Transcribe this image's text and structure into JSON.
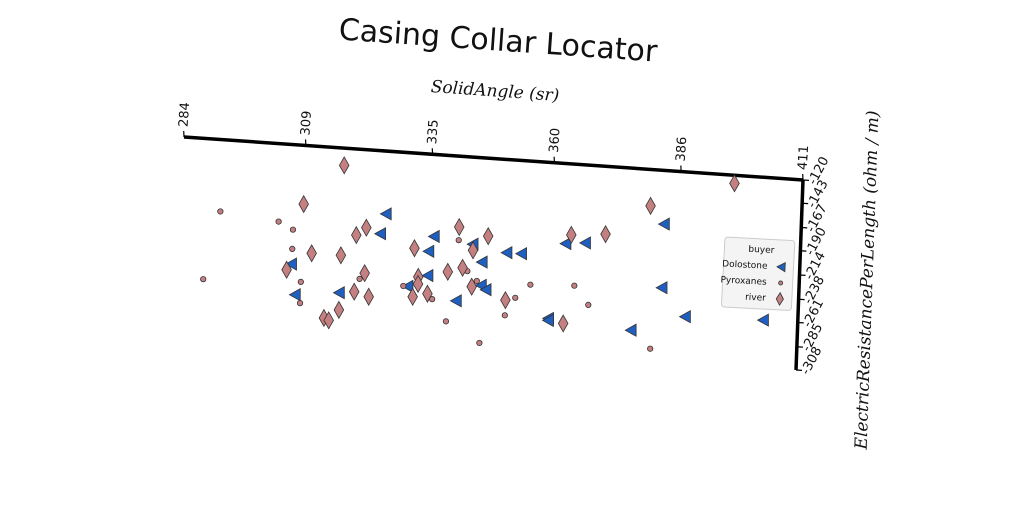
{
  "chart_data": {
    "type": "scatter",
    "title": "Casing Collar Locator",
    "x_label": "SolidAngle (sr)",
    "y_label": "ElectricResistancePerLength (ohm / m)",
    "xlim": [
      284,
      411
    ],
    "xticks": [
      284,
      309,
      335,
      360,
      386,
      411
    ],
    "ylim": [
      -308,
      -120
    ],
    "yticks": [
      -120,
      -143,
      -167,
      -190,
      -214,
      -238,
      -261,
      -285,
      -308
    ],
    "legend_title": "buyer",
    "legend": "center right",
    "series": [
      {
        "name": "Dolostone",
        "color": "#1f5fbf",
        "marker": "triangle-left",
        "x": [
          326,
          336,
          325,
          344,
          335,
          354,
          351,
          363,
          367,
          383,
          307,
          346,
          335,
          331,
          346,
          347,
          341,
          317,
          308,
          383,
          360,
          360,
          377,
          388,
          404
        ],
        "values": [
          -182,
          -201,
          -202,
          -206,
          -216,
          -212,
          -212,
          -199,
          -197,
          -173,
          -238,
          -223,
          -240,
          -252,
          -246,
          -250,
          -263,
          -263,
          -268,
          -236,
          -274,
          -276,
          -280,
          -263,
          -261
        ]
      },
      {
        "name": "Pyroxanes",
        "color": "#c47f80",
        "marker": "circle",
        "x": [
          292,
          304,
          307,
          307,
          289,
          309,
          309,
          321,
          330,
          341,
          343,
          345,
          339,
          346,
          351,
          353,
          356,
          365,
          368,
          381,
          336
        ],
        "values": [
          -191,
          -197,
          -204,
          -223,
          -259,
          -255,
          -276,
          -248,
          -252,
          -203,
          -233,
          -242,
          -284,
          -303,
          -274,
          -256,
          -242,
          -240,
          -258,
          -297,
          -263
        ]
      },
      {
        "name": "river",
        "color": "#c47f80",
        "marker": "diamond",
        "x": [
          317,
          397,
          380,
          309,
          320,
          322,
          341,
          332,
          347,
          364,
          371,
          311,
          317,
          306,
          322,
          339,
          342,
          344,
          333,
          333,
          332,
          335,
          320,
          323,
          317,
          314,
          315,
          363,
          351,
          344
        ],
        "values": [
          -137,
          -128,
          -156,
          -178,
          -205,
          -197,
          -190,
          -214,
          -197,
          -190,
          -187,
          -226,
          -226,
          -244,
          -242,
          -235,
          -230,
          -212,
          -242,
          -249,
          -262,
          -258,
          -261,
          -265,
          -280,
          -289,
          -291,
          -278,
          -259,
          -248
        ]
      }
    ]
  }
}
